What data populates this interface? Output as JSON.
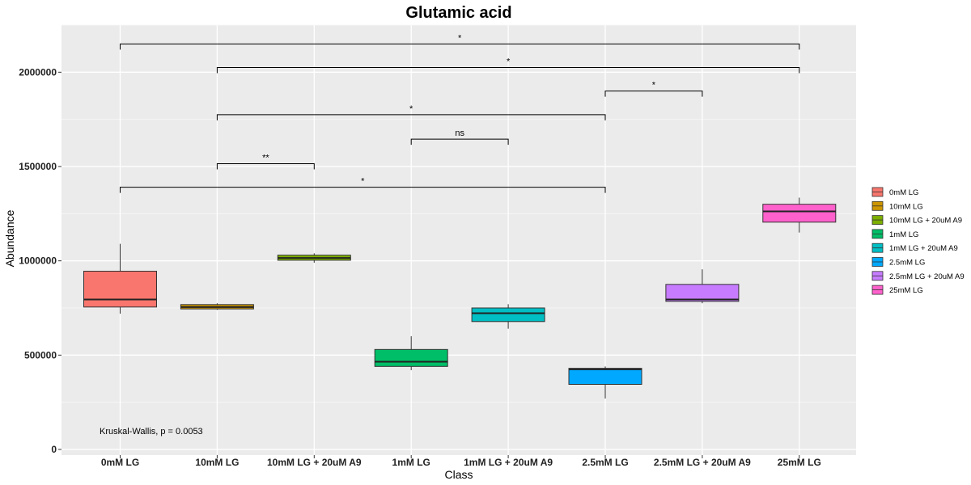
{
  "chart_data": {
    "type": "box",
    "title": "Glutamic acid",
    "xlabel": "Class",
    "ylabel": "Abundance",
    "ylim": [
      -30000,
      2250000
    ],
    "yticks": [
      0,
      500000,
      1000000,
      1500000,
      2000000
    ],
    "ytick_labels": [
      "0",
      "500000",
      "1000000",
      "1500000",
      "2000000"
    ],
    "grid": true,
    "legend_position": "right",
    "categories": [
      "0mM LG",
      "10mM LG",
      "10mM LG + 20uM A9",
      "1mM LG",
      "1mM LG + 20uM A9",
      "2.5mM LG",
      "2.5mM LG + 20uM A9",
      "25mM LG"
    ],
    "colors": [
      "#F8766D",
      "#CD9600",
      "#7CAE00",
      "#00BE67",
      "#00BFC4",
      "#00A9FF",
      "#C77CFF",
      "#FF61CC"
    ],
    "boxes": [
      {
        "whisker_low": 720000,
        "q1": 755000,
        "median": 795000,
        "q3": 945000,
        "whisker_high": 1090000
      },
      {
        "whisker_low": 740000,
        "q1": 745000,
        "median": 755000,
        "q3": 768000,
        "whisker_high": 775000
      },
      {
        "whisker_low": 990000,
        "q1": 1003000,
        "median": 1015000,
        "q3": 1030000,
        "whisker_high": 1040000
      },
      {
        "whisker_low": 420000,
        "q1": 440000,
        "median": 465000,
        "q3": 530000,
        "whisker_high": 600000
      },
      {
        "whisker_low": 640000,
        "q1": 678000,
        "median": 722000,
        "q3": 750000,
        "whisker_high": 770000
      },
      {
        "whisker_low": 270000,
        "q1": 345000,
        "median": 425000,
        "q3": 430000,
        "whisker_high": 440000
      },
      {
        "whisker_low": 775000,
        "q1": 785000,
        "median": 795000,
        "q3": 875000,
        "whisker_high": 955000
      },
      {
        "whisker_low": 1150000,
        "q1": 1205000,
        "median": 1262000,
        "q3": 1300000,
        "whisker_high": 1335000
      }
    ],
    "comparisons": [
      {
        "from": 0,
        "to": 7,
        "y": 2150000,
        "label": "*"
      },
      {
        "from": 1,
        "to": 7,
        "y": 2025000,
        "label": "*"
      },
      {
        "from": 5,
        "to": 6,
        "y": 1900000,
        "label": "*"
      },
      {
        "from": 1,
        "to": 5,
        "y": 1775000,
        "label": "*"
      },
      {
        "from": 3,
        "to": 4,
        "y": 1645000,
        "label": "ns"
      },
      {
        "from": 1,
        "to": 2,
        "y": 1515000,
        "label": "**"
      },
      {
        "from": 0,
        "to": 5,
        "y": 1390000,
        "label": "*"
      }
    ],
    "annotation": "Kruskal-Wallis, p = 0.0053"
  }
}
